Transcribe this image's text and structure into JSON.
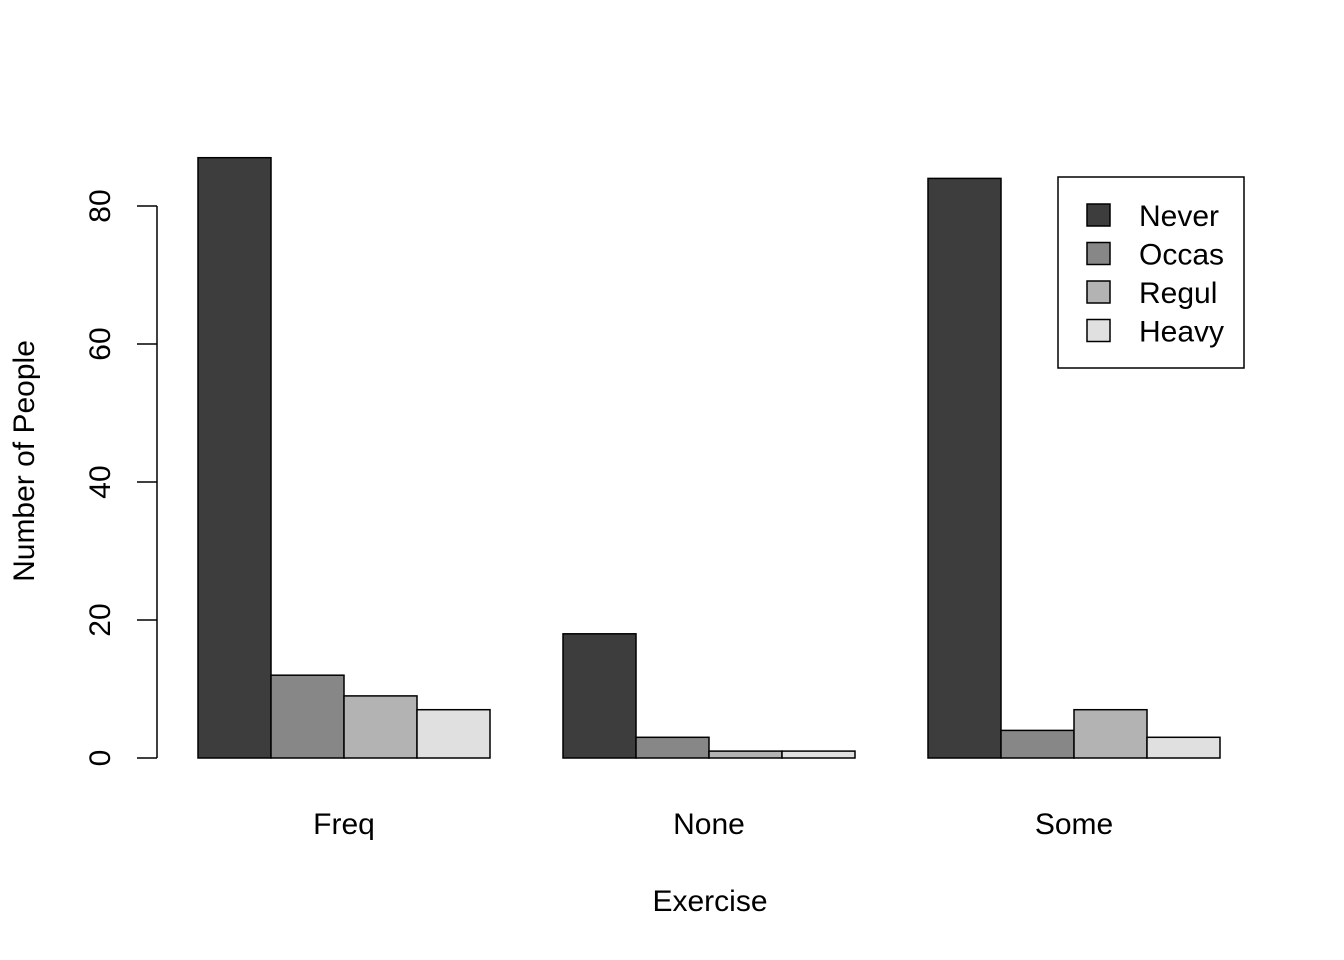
{
  "chart_data": {
    "type": "bar",
    "mode": "grouped",
    "title": "",
    "xlabel": "Exercise",
    "ylabel": "Number of People",
    "categories": [
      "Freq",
      "None",
      "Some"
    ],
    "series": [
      {
        "name": "Never",
        "color": "#3d3d3d",
        "values": [
          87,
          18,
          84
        ]
      },
      {
        "name": "Occas",
        "color": "#878787",
        "values": [
          12,
          3,
          4
        ]
      },
      {
        "name": "Regul",
        "color": "#b3b3b3",
        "values": [
          9,
          1,
          7
        ]
      },
      {
        "name": "Heavy",
        "color": "#e0e0e0",
        "values": [
          7,
          1,
          3
        ]
      }
    ],
    "yticks": [
      0,
      20,
      40,
      60,
      80
    ],
    "ytick_labels": [
      "0",
      "20",
      "40",
      "60",
      "80"
    ],
    "ylim": [
      0,
      87
    ],
    "legend": "top-right",
    "grid": false
  }
}
